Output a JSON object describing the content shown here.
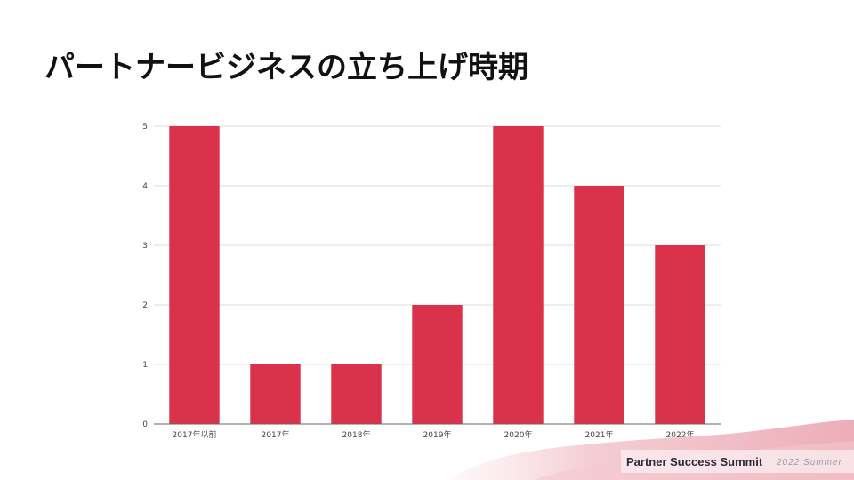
{
  "slide": {
    "title": "パートナービジネスの立ち上げ時期"
  },
  "footer": {
    "brand": "Partner Success Summit",
    "subtitle": "2022 Summer"
  },
  "colors": {
    "bar": "#d9324a",
    "grid": "#dddddd",
    "axis": "#666666",
    "brush": "#efb3bd"
  },
  "chart_data": {
    "type": "bar",
    "categories": [
      "2017年以前",
      "2017年",
      "2018年",
      "2019年",
      "2020年",
      "2021年",
      "2022年"
    ],
    "values": [
      5,
      1,
      1,
      2,
      5,
      4,
      3
    ],
    "yticks": [
      0,
      1,
      2,
      3,
      4,
      5
    ],
    "ylim": [
      0,
      5
    ],
    "grid": true,
    "legend": "none"
  }
}
